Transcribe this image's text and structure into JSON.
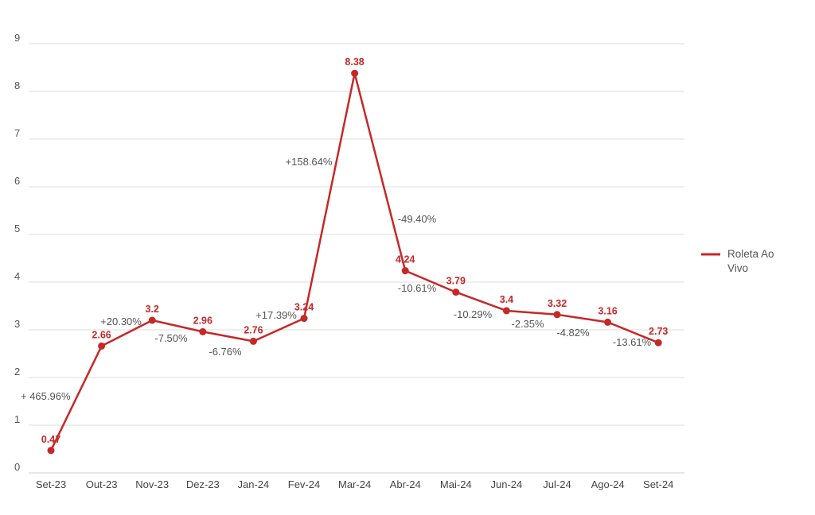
{
  "chart_data": {
    "type": "line",
    "title": "",
    "xlabel": "",
    "ylabel": "",
    "ylim": [
      0,
      9
    ],
    "yticks": [
      "0",
      "1",
      "2",
      "3",
      "4",
      "5",
      "6",
      "7",
      "8",
      "9"
    ],
    "grid": true,
    "legend_position": "right",
    "categories": [
      "Set-23",
      "Out-23",
      "Nov-23",
      "Dez-23",
      "Jan-24",
      "Fev-24",
      "Mar-24",
      "Abr-24",
      "Mai-24",
      "Jun-24",
      "Jul-24",
      "Ago-24",
      "Set-24"
    ],
    "series": [
      {
        "name": "Roleta Ao Vivo",
        "color": "#c62828",
        "values": [
          0.47,
          2.66,
          3.2,
          2.96,
          2.76,
          3.24,
          8.38,
          4.24,
          3.79,
          3.4,
          3.32,
          3.16,
          2.73
        ],
        "value_labels": [
          "0.47",
          "2.66",
          "3.2",
          "2.96",
          "2.76",
          "3.24",
          "8.38",
          "4.24",
          "3.79",
          "3.4",
          "3.32",
          "3.16",
          "2.73"
        ]
      }
    ],
    "annotations": [
      "+ 465.96%",
      "+20.30%",
      "-7.50%",
      "-6.76%",
      "+17.39%",
      "+158.64%",
      "-49.40%",
      "-10.61%",
      "-10.29%",
      "-2.35%",
      "-4.82%",
      "-13.61%"
    ]
  },
  "legend": {
    "label_line1": "Roleta Ao",
    "label_line2": "Vivo"
  }
}
